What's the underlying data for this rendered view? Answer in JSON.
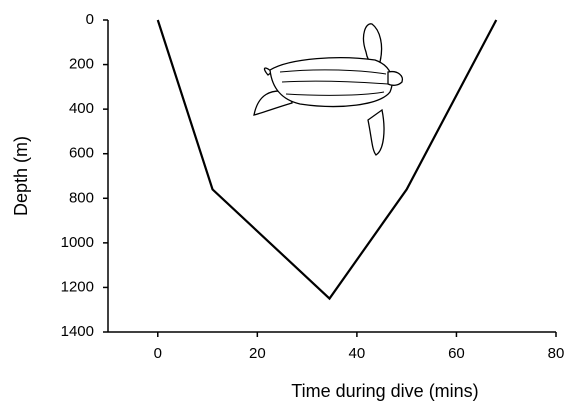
{
  "chart_data": {
    "type": "line",
    "x_label": "Time during dive (mins)",
    "y_label": "Depth (m)",
    "x": [
      0,
      11,
      34.5,
      50,
      68
    ],
    "series": [
      {
        "color": "#000000",
        "values": [
          0,
          760,
          1250,
          760,
          0
        ]
      }
    ],
    "xlim": [
      -10,
      80
    ],
    "xticks": [
      0,
      20,
      40,
      60,
      80
    ],
    "ylim": [
      0,
      1400
    ],
    "yticks": [
      0,
      200,
      400,
      600,
      800,
      1000,
      1200,
      1400
    ],
    "y_inverted": true,
    "grid": false
  }
}
